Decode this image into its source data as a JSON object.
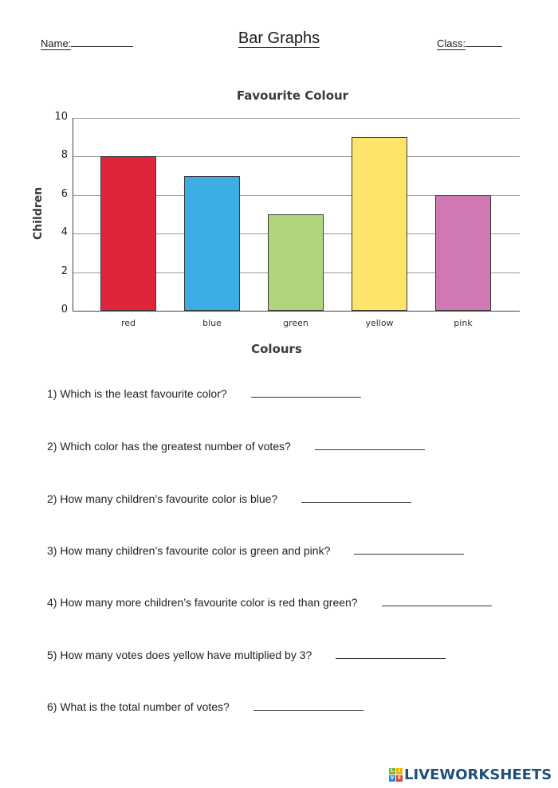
{
  "header": {
    "name_label": "Name:",
    "title": "Bar Graphs",
    "class_label": "Class:"
  },
  "chart_data": {
    "type": "bar",
    "title": "Favourite Colour",
    "xlabel": "Colours",
    "ylabel": "Children",
    "categories": [
      "red",
      "blue",
      "green",
      "yellow",
      "pink"
    ],
    "values": [
      8,
      7,
      5,
      9,
      6
    ],
    "colors": [
      "#e0243a",
      "#3daee4",
      "#b1d57a",
      "#ffe46b",
      "#cf78b1"
    ],
    "yticks": [
      0,
      2,
      4,
      6,
      8,
      10
    ],
    "ylim": [
      0,
      10
    ],
    "grid": true,
    "legend": null
  },
  "chart": {
    "title": "Favourite Colour",
    "xlabel": "Colours",
    "ylabel": "Children",
    "yticks": [
      "0",
      "2",
      "4",
      "6",
      "8",
      "10"
    ],
    "xticks": [
      "red",
      "blue",
      "green",
      "yellow",
      "pink"
    ]
  },
  "questions": [
    {
      "text": "1) Which is the least favourite color?"
    },
    {
      "text": "2) Which color has the greatest number of votes?"
    },
    {
      "text": "2) How many children’s favourite color is blue?"
    },
    {
      "text": "3) How many children’s favourite color is green and pink?"
    },
    {
      "text": "4) How many more children’s favourite color is red than green?"
    },
    {
      "text": "5) How many votes does yellow have multiplied by 3?"
    },
    {
      "text": "6) What is the total number of votes?"
    }
  ],
  "footer": {
    "brand": "LIVEWORKSHEETS",
    "logo_letters": [
      "L",
      "I",
      "V",
      "E"
    ],
    "logo_colors": [
      "#7cb342",
      "#f4b400",
      "#1e88e5",
      "#e53935"
    ]
  }
}
